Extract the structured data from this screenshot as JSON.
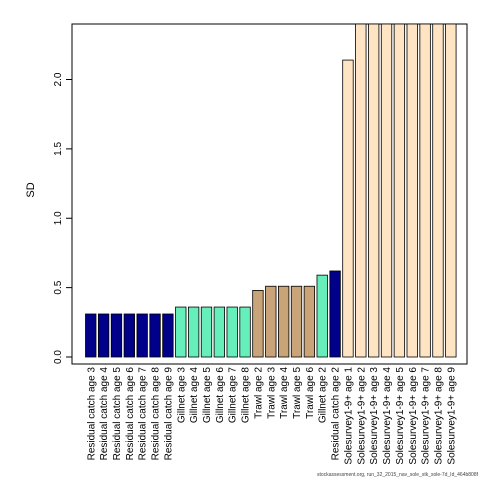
{
  "chart_data": {
    "type": "bar",
    "title": "",
    "xlabel": "",
    "ylabel": "SD",
    "ylim": [
      0,
      2.4
    ],
    "yticks": [
      "0.0",
      "0.5",
      "1.0",
      "1.5",
      "2.0"
    ],
    "grid": false,
    "categories": [
      "Residual catch age 3",
      "Residual catch age 4",
      "Residual catch age 5",
      "Residual catch age 6",
      "Residual catch age 7",
      "Residual catch age 8",
      "Residual catch age 9",
      "Gillnet age 3",
      "Gillnet age 4",
      "Gillnet age 5",
      "Gillnet age 6",
      "Gillnet age 7",
      "Gillnet age 8",
      "Trawl age 2",
      "Trawl age 3",
      "Trawl age 4",
      "Trawl age 5",
      "Trawl age 6",
      "Gillnet age 2",
      "Residual catch age 2",
      "Solesurvey1-9+ age 1",
      "Solesurvey1-9+ age 2",
      "Solesurvey1-9+ age 3",
      "Solesurvey1-9+ age 4",
      "Solesurvey1-9+ age 5",
      "Solesurvey1-9+ age 6",
      "Solesurvey1-9+ age 7",
      "Solesurvey1-9+ age 8",
      "Solesurvey1-9+ age 9"
    ],
    "values": [
      0.31,
      0.31,
      0.31,
      0.31,
      0.31,
      0.31,
      0.31,
      0.36,
      0.36,
      0.36,
      0.36,
      0.36,
      0.36,
      0.48,
      0.51,
      0.51,
      0.51,
      0.51,
      0.59,
      0.62,
      2.14,
      2.4,
      2.4,
      2.4,
      2.4,
      2.4,
      2.4,
      2.4,
      2.4
    ],
    "colors": [
      "#00008B",
      "#00008B",
      "#00008B",
      "#00008B",
      "#00008B",
      "#00008B",
      "#00008B",
      "#66EEBB",
      "#66EEBB",
      "#66EEBB",
      "#66EEBB",
      "#66EEBB",
      "#66EEBB",
      "#C8A478",
      "#C8A478",
      "#C8A478",
      "#C8A478",
      "#C8A478",
      "#66EEBB",
      "#00008B",
      "#FFE4C4",
      "#FFE4C4",
      "#FFE4C4",
      "#FFE4C4",
      "#FFE4C4",
      "#FFE4C4",
      "#FFE4C4",
      "#FFE4C4",
      "#FFE4C4"
    ]
  },
  "footer": "stockassessment.org, run_32_2015_nav_sole_stk_sole-7d_Id_464b808f"
}
